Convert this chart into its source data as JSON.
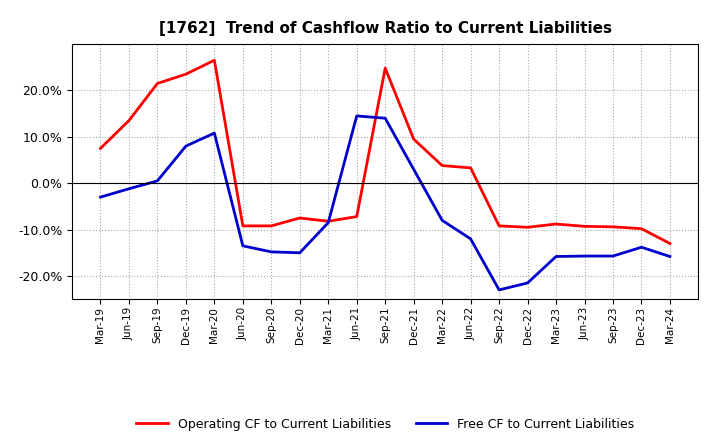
{
  "title": "[1762]  Trend of Cashflow Ratio to Current Liabilities",
  "categories": [
    "Mar-19",
    "Jun-19",
    "Sep-19",
    "Dec-19",
    "Mar-20",
    "Jun-20",
    "Sep-20",
    "Dec-20",
    "Mar-21",
    "Jun-21",
    "Sep-21",
    "Dec-21",
    "Mar-22",
    "Jun-22",
    "Sep-22",
    "Dec-22",
    "Mar-23",
    "Jun-23",
    "Sep-23",
    "Dec-23",
    "Mar-24"
  ],
  "operating_cf": [
    0.075,
    0.135,
    0.215,
    0.235,
    0.265,
    -0.092,
    -0.092,
    -0.075,
    -0.082,
    -0.072,
    0.248,
    0.095,
    0.038,
    0.033,
    -0.092,
    -0.095,
    -0.088,
    -0.093,
    -0.094,
    -0.098,
    -0.13
  ],
  "free_cf": [
    -0.03,
    -0.012,
    0.005,
    0.08,
    0.108,
    -0.135,
    -0.148,
    -0.15,
    -0.085,
    0.145,
    0.14,
    0.03,
    -0.08,
    -0.12,
    -0.23,
    -0.215,
    -0.158,
    -0.157,
    -0.157,
    -0.138,
    -0.158
  ],
  "operating_color": "#ff0000",
  "free_color": "#0000cc",
  "ylim": [
    -0.25,
    0.3
  ],
  "yticks": [
    -0.2,
    -0.1,
    0.0,
    0.1,
    0.2
  ],
  "background_color": "#ffffff",
  "grid_color": "#aaaaaa",
  "legend_labels": [
    "Operating CF to Current Liabilities",
    "Free CF to Current Liabilities"
  ]
}
